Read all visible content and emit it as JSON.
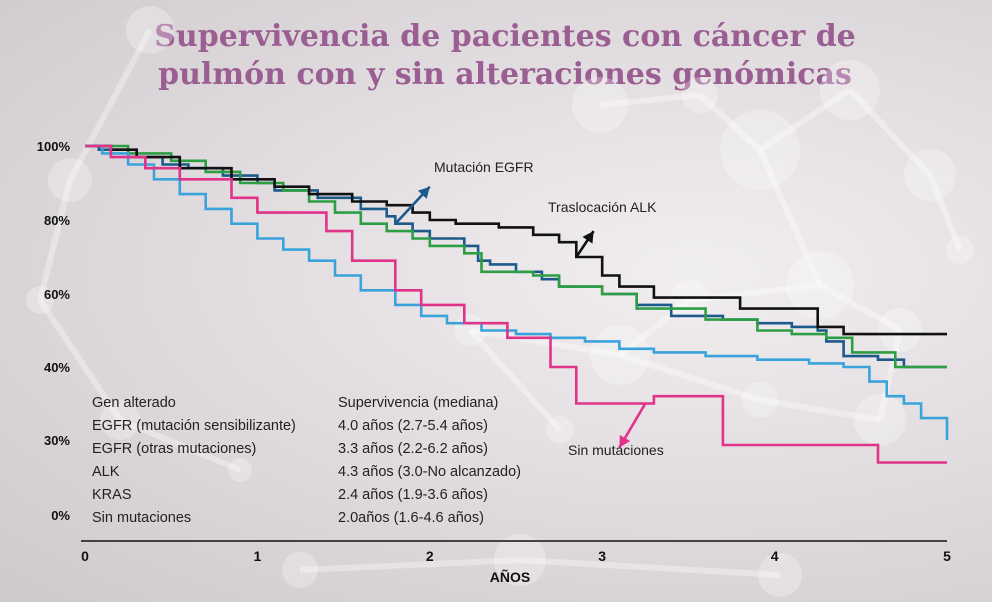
{
  "chart_data": {
    "type": "line",
    "step": true,
    "title": "Supervivencia de pacientes con cáncer de pulmón con y sin alteraciones genómicas",
    "title_lines": [
      "Supervivencia de pacientes con cáncer de",
      "pulmón con y sin alteraciones genómicas"
    ],
    "xlabel": "AÑOS",
    "ylabel": "",
    "xlim": [
      0,
      5
    ],
    "x_ticks": [
      "0",
      "1",
      "2",
      "3",
      "4",
      "5"
    ],
    "y_ticks": [
      {
        "label": "100%",
        "value": 100
      },
      {
        "label": "80%",
        "value": 80
      },
      {
        "label": "60%",
        "value": 60
      },
      {
        "label": "40%",
        "value": 40
      },
      {
        "label": "30%",
        "value": 30
      },
      {
        "label": "0%",
        "value": 0
      }
    ],
    "series": [
      {
        "name": "EGFR (mutación sensibilizante)",
        "color": "#1d5a8c",
        "x": [
          0,
          0.08,
          0.25,
          0.45,
          0.6,
          0.8,
          1.0,
          1.1,
          1.35,
          1.6,
          1.75,
          1.8,
          1.9,
          2.0,
          2.2,
          2.28,
          2.35,
          2.5,
          2.65,
          2.75,
          3.0,
          3.2,
          3.4,
          3.7,
          3.9,
          4.1,
          4.25,
          4.3,
          4.4,
          4.6,
          4.75,
          5.0
        ],
        "y": [
          100,
          99,
          97,
          95,
          94,
          92,
          90,
          88,
          86,
          83,
          81,
          79,
          77,
          75,
          73,
          69,
          68,
          66,
          64,
          62,
          60,
          57,
          54,
          53,
          52,
          51,
          50,
          47,
          43,
          42,
          40,
          40
        ]
      },
      {
        "name": "EGFR (otras mutaciones)",
        "color": "#2e9e44",
        "x": [
          0,
          0.25,
          0.5,
          0.7,
          0.9,
          1.15,
          1.3,
          1.45,
          1.6,
          1.75,
          1.9,
          2.0,
          2.2,
          2.3,
          2.6,
          2.75,
          3.0,
          3.2,
          3.6,
          3.9,
          4.1,
          4.3,
          4.45,
          4.7,
          5.0
        ],
        "y": [
          100,
          98,
          96,
          93,
          90,
          88,
          85,
          82,
          79,
          77,
          75,
          73,
          71,
          66,
          65,
          62,
          60,
          56,
          53,
          50,
          49,
          48,
          44,
          40,
          40
        ]
      },
      {
        "name": "ALK",
        "color": "#111111",
        "x": [
          0,
          0.15,
          0.3,
          0.55,
          0.85,
          1.1,
          1.3,
          1.55,
          1.75,
          1.9,
          2.0,
          2.15,
          2.4,
          2.6,
          2.75,
          2.85,
          3.0,
          3.1,
          3.3,
          3.8,
          4.25,
          4.4,
          5.0
        ],
        "y": [
          100,
          99,
          97,
          94,
          91,
          89,
          87,
          85,
          84,
          82,
          80,
          79,
          78,
          76,
          74,
          70,
          65,
          62,
          59,
          56,
          51,
          49,
          49
        ]
      },
      {
        "name": "KRAS",
        "color": "#3aa3dc",
        "x": [
          0,
          0.1,
          0.25,
          0.4,
          0.55,
          0.7,
          0.85,
          1.0,
          1.15,
          1.3,
          1.45,
          1.6,
          1.8,
          1.95,
          2.1,
          2.3,
          2.5,
          2.7,
          2.9,
          3.1,
          3.3,
          3.6,
          3.9,
          4.2,
          4.4,
          4.55,
          4.65,
          4.75,
          4.85,
          5.0
        ],
        "y": [
          100,
          98,
          95,
          91,
          87,
          83,
          79,
          75,
          72,
          69,
          65,
          61,
          57,
          54,
          52,
          50,
          49,
          48,
          47,
          45,
          44,
          43,
          42,
          41,
          40,
          38,
          36,
          35,
          33,
          30
        ]
      },
      {
        "name": "Sin mutaciones",
        "color": "#e0338a",
        "x": [
          0,
          0.15,
          0.35,
          0.55,
          0.85,
          1.0,
          1.4,
          1.55,
          1.8,
          1.95,
          2.2,
          2.45,
          2.7,
          2.85,
          3.3,
          3.7,
          4.6,
          5.0
        ],
        "y": [
          100,
          97,
          94,
          91,
          86,
          82,
          77,
          69,
          61,
          57,
          52,
          48,
          40,
          35,
          36,
          28,
          21,
          21
        ]
      }
    ],
    "annotations": [
      {
        "text": "Mutación EGFR",
        "series": "EGFR (mutación sensibilizante)",
        "arrow_from": {
          "x": 1.8,
          "y": 79
        },
        "arrow_to": {
          "x": 2.0,
          "y": 89
        }
      },
      {
        "text": "Traslocación ALK",
        "series": "ALK",
        "arrow_from": {
          "x": 2.85,
          "y": 70
        },
        "arrow_to": {
          "x": 2.95,
          "y": 77
        }
      },
      {
        "text": "Sin mutaciones",
        "series": "Sin mutaciones",
        "arrow_from": {
          "x": 3.25,
          "y": 35
        },
        "arrow_to": {
          "x": 3.1,
          "y": 27
        }
      }
    ]
  },
  "legend_table": {
    "header": [
      "Gen alterado",
      "Supervivencia (mediana)"
    ],
    "rows": [
      [
        "EGFR (mutación sensibilizante)",
        "4.0 años (2.7-5.4 años)"
      ],
      [
        "EGFR (otras mutaciones)",
        "3.3 años (2.2-6.2 años)"
      ],
      [
        "ALK",
        "4.3 años (3.0-No alcanzado)"
      ],
      [
        "KRAS",
        "2.4 años (1.9-3.6 años)"
      ],
      [
        "Sin mutaciones",
        "2.0años (1.6-4.6 años)"
      ]
    ]
  }
}
